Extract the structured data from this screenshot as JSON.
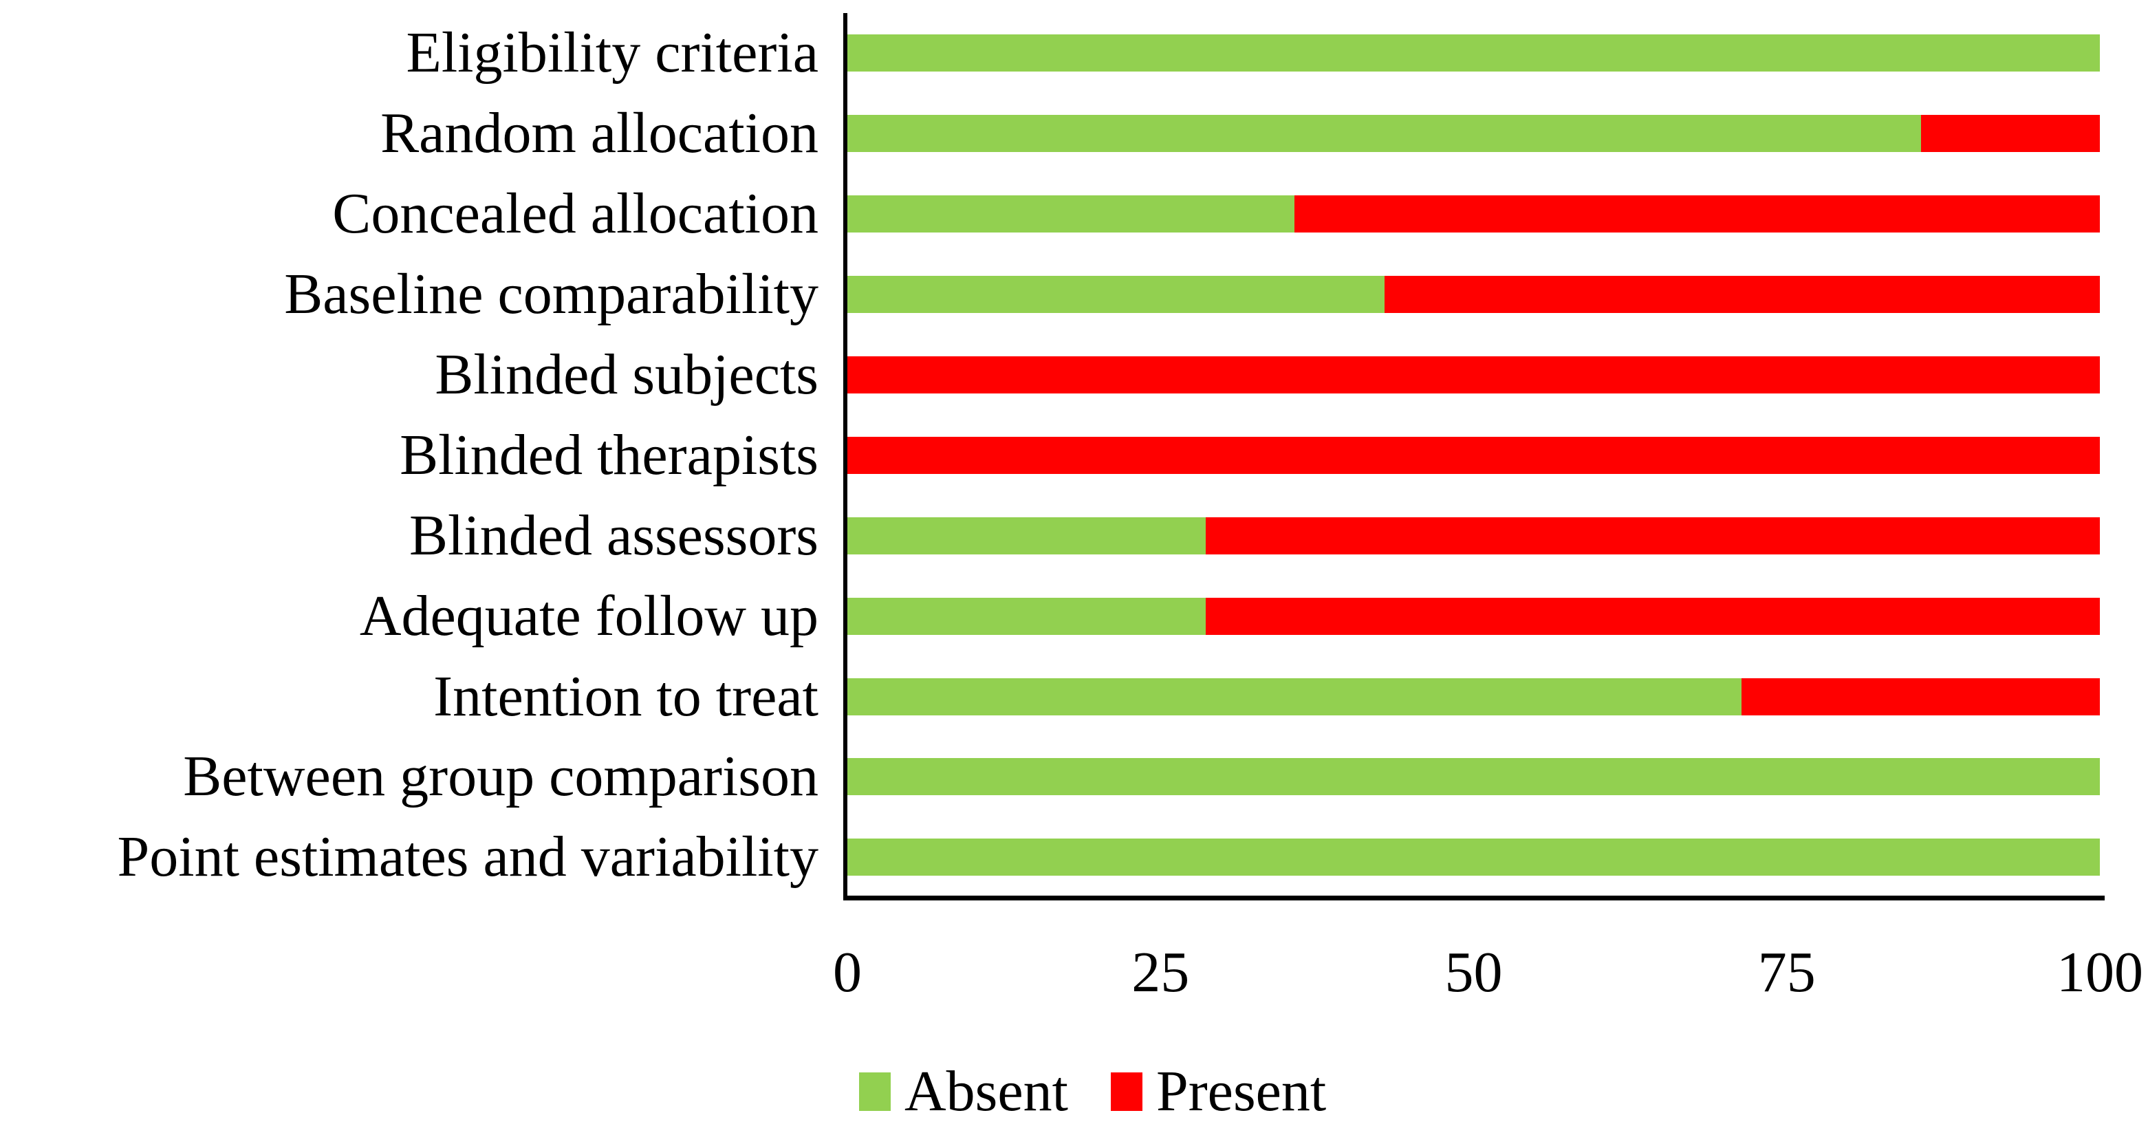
{
  "chart_data": {
    "type": "bar",
    "orientation": "horizontal",
    "stacked": true,
    "unit": "percent",
    "title": "",
    "xlabel": "",
    "ylabel": "",
    "categories": [
      "Eligibility criteria",
      "Random allocation",
      "Concealed allocation",
      "Baseline comparability",
      "Blinded subjects",
      "Blinded therapists",
      "Blinded assessors",
      "Adequate follow up",
      "Intention to treat",
      "Between group comparison",
      "Point estimates and variability"
    ],
    "series": [
      {
        "name": "Absent",
        "color": "#92D050",
        "values": [
          100,
          85.7,
          35.7,
          42.9,
          0,
          0,
          28.6,
          28.6,
          71.4,
          100,
          100
        ]
      },
      {
        "name": "Present",
        "color": "#FF0000",
        "values": [
          0,
          14.3,
          64.3,
          57.1,
          100,
          100,
          71.4,
          71.4,
          28.6,
          0,
          0
        ]
      }
    ],
    "x_ticks": [
      0,
      25,
      50,
      75,
      100
    ],
    "xlim": [
      0,
      100
    ],
    "grid": false,
    "legend": {
      "position": "bottom",
      "entries": [
        "Absent",
        "Present"
      ]
    }
  },
  "colors": {
    "absent": "#92D050",
    "present": "#FF0000",
    "axis": "#000000",
    "text": "#000000",
    "background": "#FFFFFF"
  }
}
